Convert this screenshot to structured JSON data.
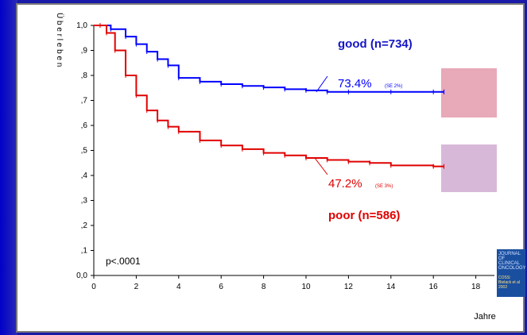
{
  "chart_data": {
    "type": "line",
    "ylabel": "Ü b e r l e b e n",
    "xlabel": "Jahre",
    "xlim": [
      0,
      20
    ],
    "ylim": [
      0,
      1
    ],
    "x_ticks": [
      "0",
      "2",
      "4",
      "6",
      "8",
      "10",
      "12",
      "14",
      "16",
      "18"
    ],
    "y_ticks": [
      "0,0",
      ",1",
      ",2",
      ",3",
      ",4",
      ",5",
      ",6",
      ",7",
      ",8",
      ",9",
      "1,0"
    ],
    "series": [
      {
        "name": "good (n=734)",
        "color": "#0000ff",
        "x": [
          0,
          0.3,
          0.8,
          1.5,
          2.0,
          2.5,
          3.0,
          3.5,
          4.0,
          5.0,
          6.0,
          7.0,
          8.0,
          9.0,
          10.0,
          11.0,
          12.0,
          14.0,
          16.0,
          16.5
        ],
        "y": [
          1.0,
          1.0,
          0.985,
          0.955,
          0.925,
          0.895,
          0.865,
          0.84,
          0.79,
          0.775,
          0.765,
          0.758,
          0.752,
          0.745,
          0.74,
          0.734,
          0.734,
          0.734,
          0.734,
          0.734
        ]
      },
      {
        "name": "poor (n=586)",
        "color": "#e00000",
        "x": [
          0,
          0.3,
          0.6,
          1.0,
          1.5,
          2.0,
          2.5,
          3.0,
          3.5,
          4.0,
          5.0,
          6.0,
          7.0,
          8.0,
          9.0,
          10.0,
          11.0,
          12.0,
          13.0,
          14.0,
          16.0,
          16.5
        ],
        "y": [
          1.0,
          1.0,
          0.97,
          0.9,
          0.8,
          0.72,
          0.66,
          0.62,
          0.595,
          0.575,
          0.54,
          0.52,
          0.505,
          0.49,
          0.48,
          0.47,
          0.462,
          0.455,
          0.45,
          0.44,
          0.436,
          0.436
        ]
      }
    ],
    "annotations": {
      "good_label": "good (n=734)",
      "poor_label": "poor (n=586)",
      "good_rate": "73.4%",
      "good_se": "(SE 2%)",
      "poor_rate": "47.2%",
      "poor_se": "(SE 3%)",
      "pvalue": "p<.0001"
    },
    "grid": false
  },
  "journal": {
    "title": "JOURNAL OF CLINICAL ONCOLOGY",
    "citation": "COSS: Bielack et al 2002"
  },
  "colors": {
    "background": "#1a1aa8",
    "good": "#0000ff",
    "poor": "#e00000",
    "label_blue": "#1515c8"
  }
}
